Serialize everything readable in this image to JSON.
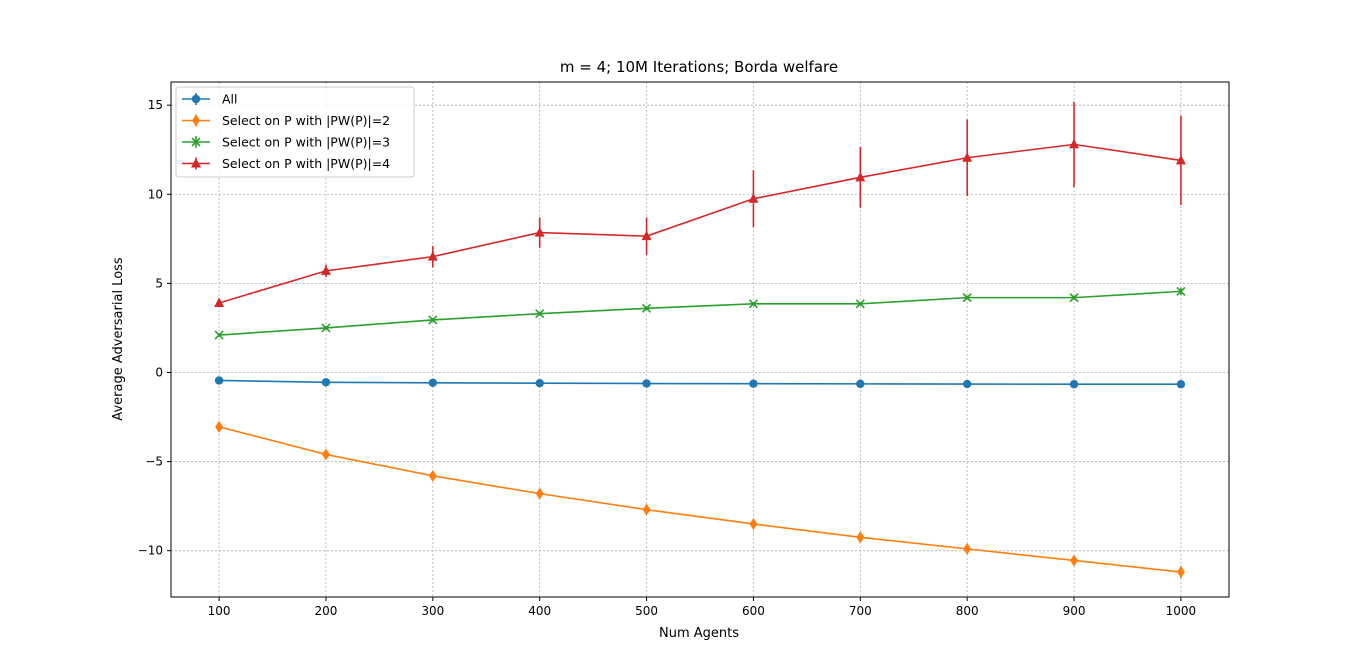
{
  "chart_data": {
    "type": "line",
    "title": "m = 4; 10M Iterations; Borda welfare",
    "xlabel": "Num Agents",
    "ylabel": "Average Adversarial Loss",
    "x": [
      100,
      200,
      300,
      400,
      500,
      600,
      700,
      800,
      900,
      1000
    ],
    "xlim": [
      55,
      1045
    ],
    "ylim": [
      -12.6,
      16.3
    ],
    "xticks": [
      100,
      200,
      300,
      400,
      500,
      600,
      700,
      800,
      900,
      1000
    ],
    "yticks": [
      -10,
      -5,
      0,
      5,
      10,
      15
    ],
    "ytick_labels": [
      "−10",
      "−5",
      "0",
      "5",
      "10",
      "15"
    ],
    "grid": true,
    "legend_position": "top-left",
    "series": [
      {
        "name": "All",
        "color": "#1f77b4",
        "marker": "circle",
        "values": [
          -0.45,
          -0.55,
          -0.58,
          -0.6,
          -0.62,
          -0.63,
          -0.64,
          -0.65,
          -0.66,
          -0.66
        ],
        "errors": [
          0.15,
          0.1,
          0.08,
          0.07,
          0.07,
          0.06,
          0.06,
          0.06,
          0.05,
          0.05
        ]
      },
      {
        "name": "Select on P with |PW(P)|=2",
        "color": "#ff7f0e",
        "marker": "diamond",
        "values": [
          -3.05,
          -4.6,
          -5.8,
          -6.8,
          -7.7,
          -8.5,
          -9.25,
          -9.9,
          -10.55,
          -11.2
        ],
        "errors": [
          0.3,
          0.25,
          0.2,
          0.2,
          0.2,
          0.2,
          0.2,
          0.2,
          0.25,
          0.35
        ]
      },
      {
        "name": "Select on P with |PW(P)|=3",
        "color": "#2ca02c",
        "marker": "x",
        "values": [
          2.1,
          2.5,
          2.95,
          3.3,
          3.6,
          3.85,
          3.85,
          4.2,
          4.2,
          4.55
        ],
        "errors": [
          0.1,
          0.1,
          0.1,
          0.1,
          0.1,
          0.1,
          0.1,
          0.1,
          0.1,
          0.2
        ]
      },
      {
        "name": "Select on P with |PW(P)|=4",
        "color": "#d62728",
        "marker": "triangle",
        "values": [
          3.9,
          5.7,
          6.5,
          7.85,
          7.65,
          9.75,
          10.95,
          12.05,
          12.8,
          11.9
        ],
        "errors": [
          0.2,
          0.35,
          0.6,
          0.85,
          1.05,
          1.6,
          1.7,
          2.15,
          2.4,
          2.5
        ]
      }
    ]
  }
}
